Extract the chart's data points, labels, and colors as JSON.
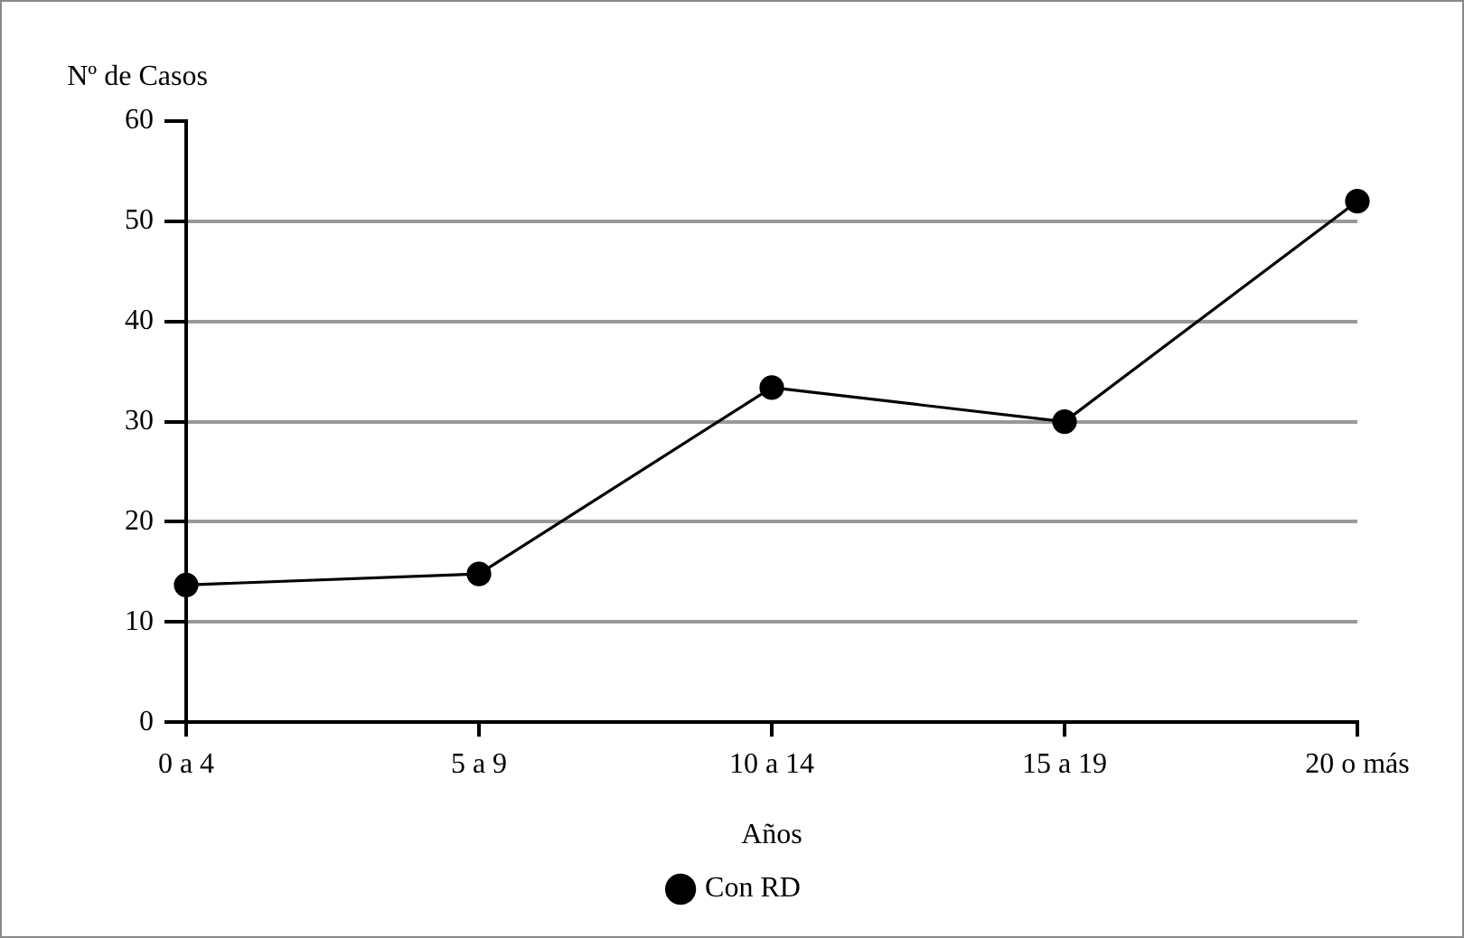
{
  "chart_data": {
    "type": "line",
    "ylabel": "Nº de Casos",
    "xlabel": "Años",
    "categories": [
      "0 a 4",
      "5 a 9",
      "10 a 14",
      "15 a 19",
      "20 o más"
    ],
    "series": [
      {
        "name": "Con RD",
        "color": "#000000",
        "values": [
          13.7,
          14.8,
          33.4,
          30,
          52
        ]
      }
    ],
    "ylim": [
      0,
      60
    ],
    "yticks": [
      0,
      10,
      20,
      30,
      40,
      50,
      60
    ],
    "grid": "y",
    "legend": "bottom",
    "marker": "circle",
    "line_style": "solid"
  }
}
